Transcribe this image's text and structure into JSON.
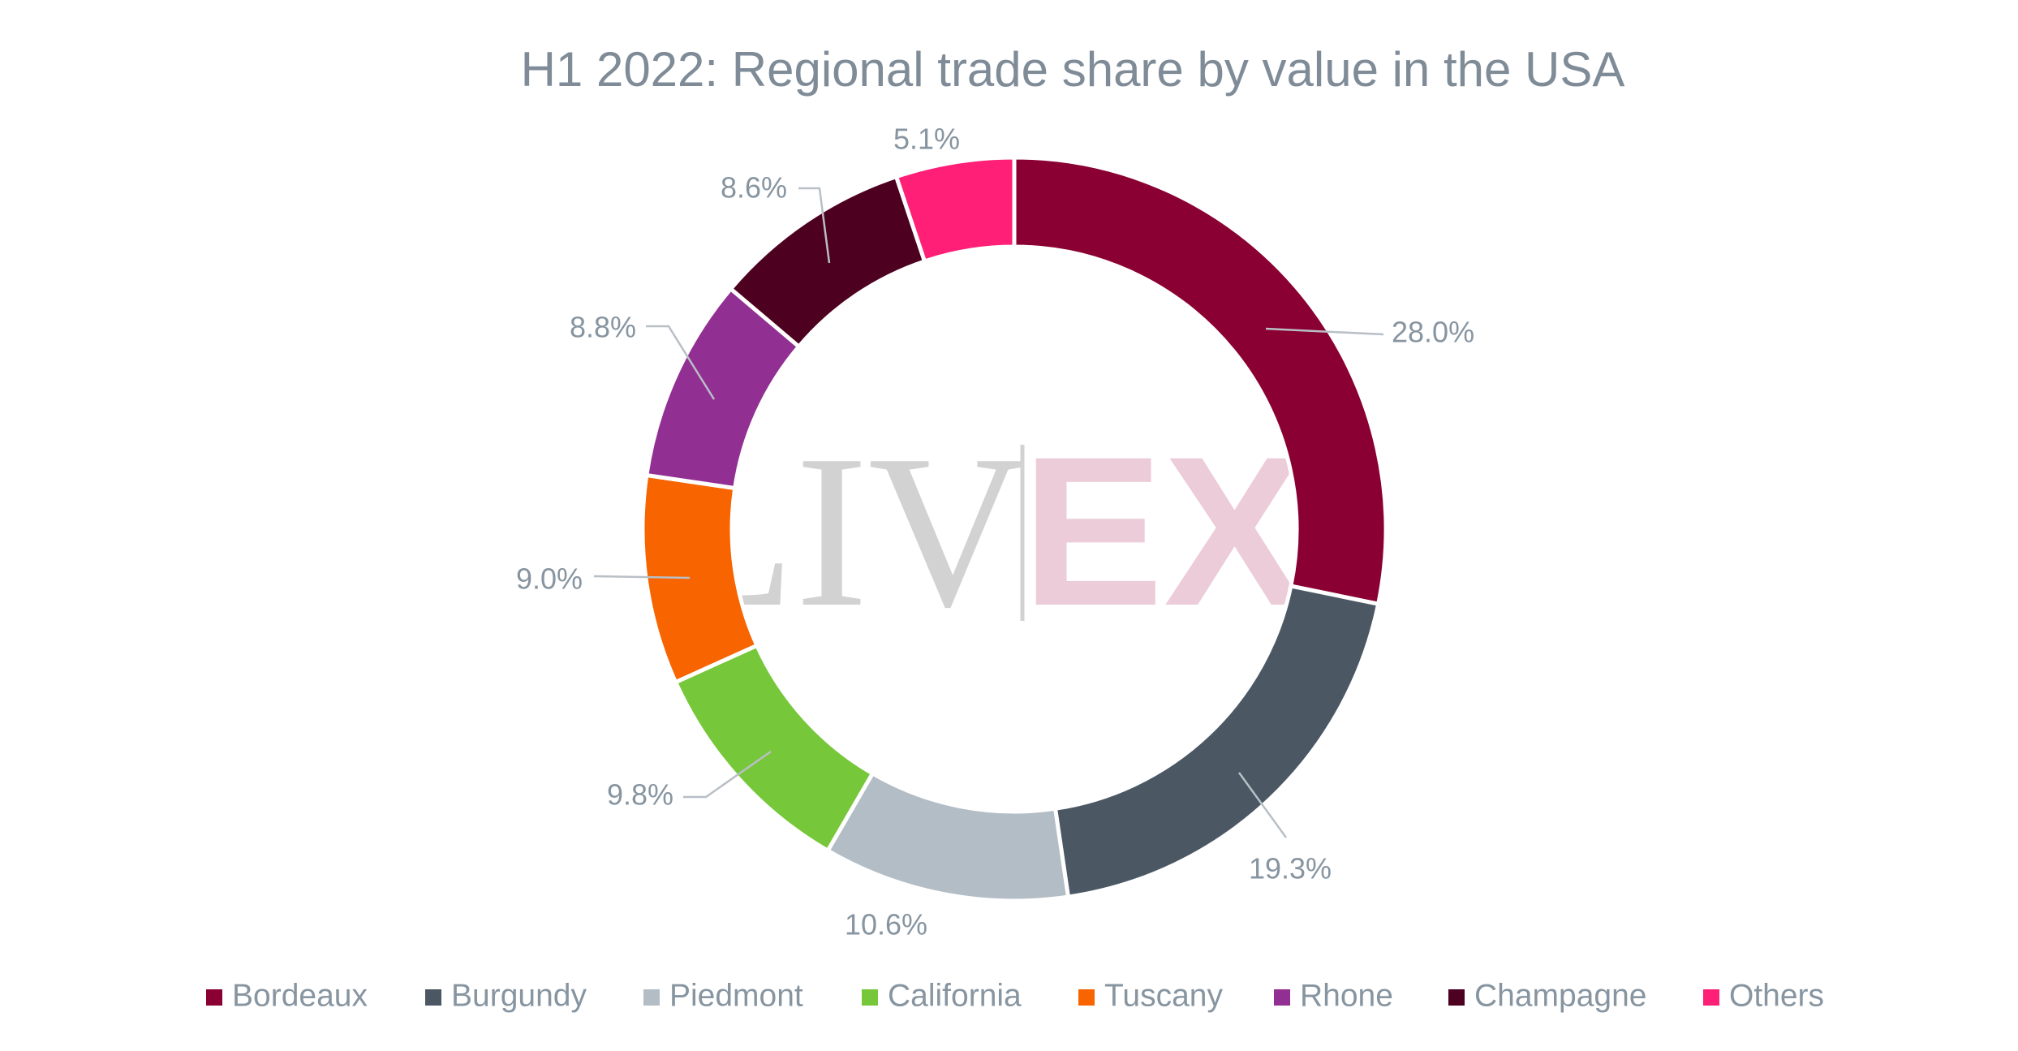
{
  "watermark": {
    "left_text": "LIV",
    "right_text": "EX"
  },
  "chart_data": {
    "type": "pie",
    "variant": "donut",
    "title": "H1 2022: Regional trade share by value in the USA",
    "legend_position": "bottom",
    "slices": [
      {
        "name": "Bordeaux",
        "value": 28.0,
        "label": "28.0%",
        "color": "#8a0032"
      },
      {
        "name": "Burgundy",
        "value": 19.3,
        "label": "19.3%",
        "color": "#4b5864"
      },
      {
        "name": "Piedmont",
        "value": 10.6,
        "label": "10.6%",
        "color": "#b3bdc6"
      },
      {
        "name": "California",
        "value": 9.8,
        "label": "9.8%",
        "color": "#76c73a"
      },
      {
        "name": "Tuscany",
        "value": 9.0,
        "label": "9.0%",
        "color": "#f76400"
      },
      {
        "name": "Rhone",
        "value": 8.8,
        "label": "8.8%",
        "color": "#922f92"
      },
      {
        "name": "Champagne",
        "value": 8.6,
        "label": "8.6%",
        "color": "#4e0020"
      },
      {
        "name": "Others",
        "value": 5.1,
        "label": "5.1%",
        "color": "#ff1f76"
      }
    ]
  }
}
